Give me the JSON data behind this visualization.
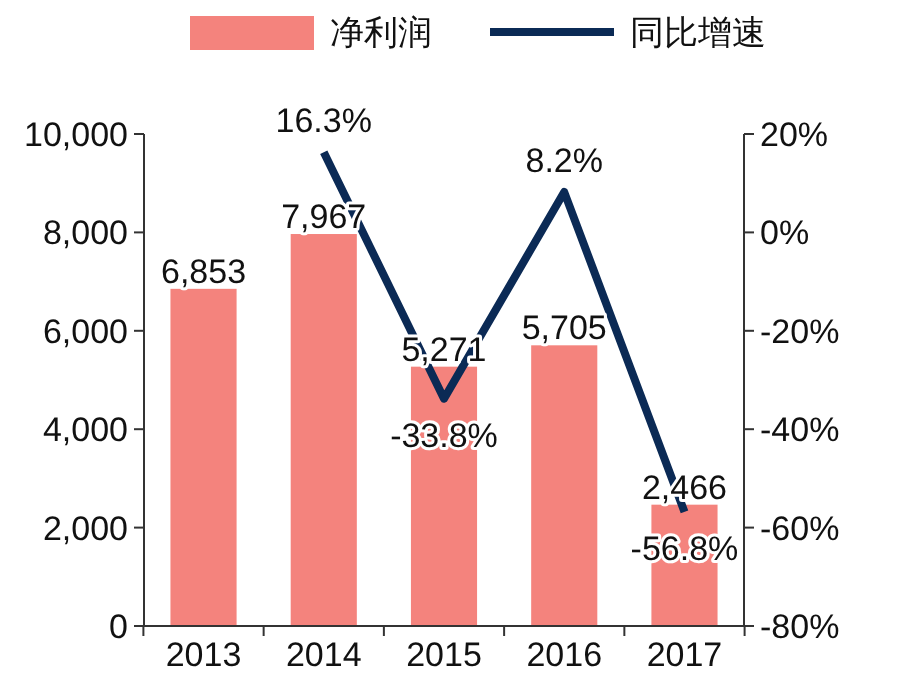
{
  "chart_data": {
    "type": "bar",
    "categories": [
      "2013",
      "2014",
      "2015",
      "2016",
      "2017"
    ],
    "series": [
      {
        "name": "净利润",
        "color": "#f4837d",
        "values": [
          6853,
          7967,
          5271,
          5705,
          2466
        ],
        "value_labels": [
          "6,853",
          "7,967",
          "5,271",
          "5,705",
          "2,466"
        ]
      },
      {
        "name": "同比增速",
        "type": "line",
        "axis": "y2",
        "color": "#0b2a55",
        "values": [
          null,
          16.3,
          -33.8,
          8.2,
          -56.8
        ],
        "value_labels": [
          null,
          "16.3%",
          "-33.8%",
          "8.2%",
          "-56.8%"
        ]
      }
    ],
    "ylim": [
      0,
      10000
    ],
    "yticks": [
      {
        "value": 0,
        "label": "0"
      },
      {
        "value": 2000,
        "label": "2,000"
      },
      {
        "value": 4000,
        "label": "4,000"
      },
      {
        "value": 6000,
        "label": "6,000"
      },
      {
        "value": 8000,
        "label": "8,000"
      },
      {
        "value": 10000,
        "label": "10,000"
      }
    ],
    "y2lim": [
      -80,
      20
    ],
    "y2ticks": [
      {
        "value": -80,
        "label": "-80%"
      },
      {
        "value": -60,
        "label": "-60%"
      },
      {
        "value": -40,
        "label": "-40%"
      },
      {
        "value": -20,
        "label": "-20%"
      },
      {
        "value": 0,
        "label": "0%"
      },
      {
        "value": 20,
        "label": "20%"
      }
    ],
    "legend": "top",
    "grid": false
  }
}
